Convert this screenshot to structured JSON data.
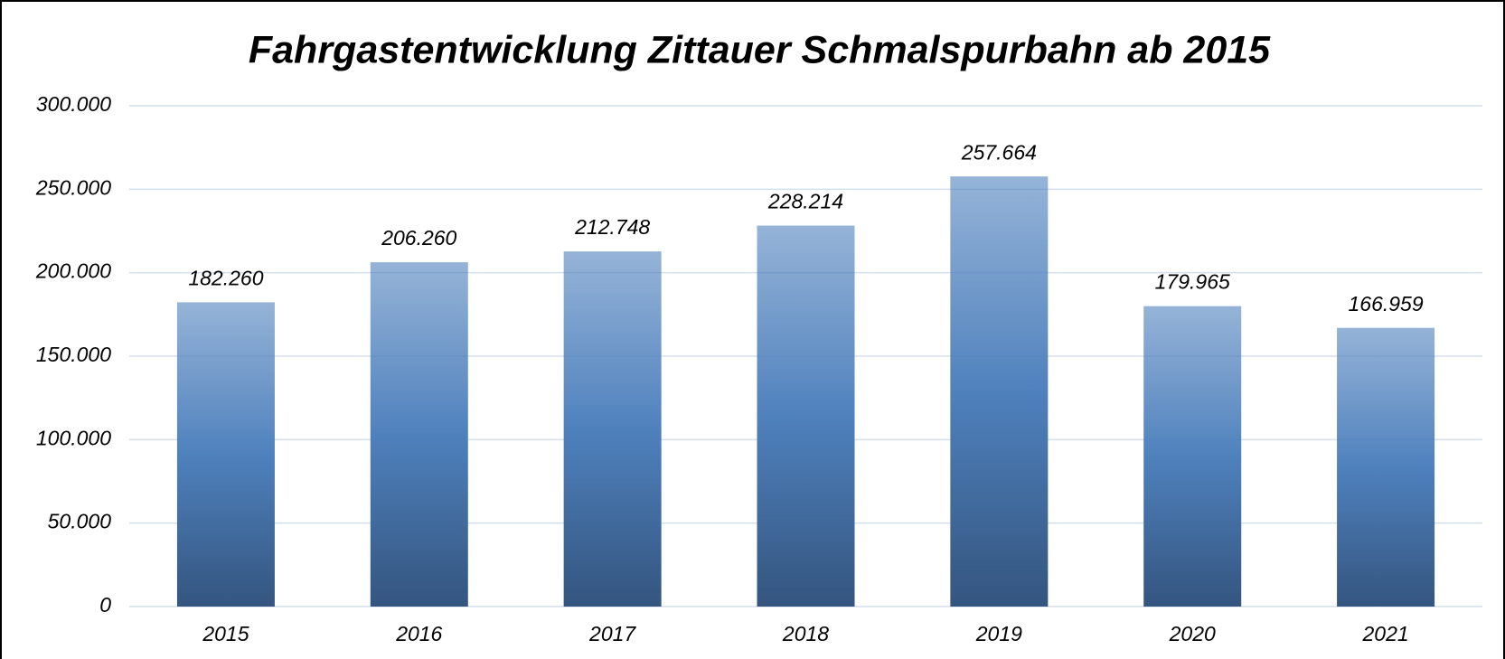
{
  "chart_data": {
    "type": "bar",
    "title": "Fahrgastentwicklung Zittauer Schmalspurbahn ab 2015",
    "categories": [
      "2015",
      "2016",
      "2017",
      "2018",
      "2019",
      "2020",
      "2021"
    ],
    "values": [
      182260,
      206260,
      212748,
      228214,
      257664,
      179965,
      166959
    ],
    "value_labels": [
      "182.260",
      "206.260",
      "212.748",
      "228.214",
      "257.664",
      "179.965",
      "166.959"
    ],
    "color": "#4f81bd",
    "ylim": [
      0,
      300000
    ],
    "yticks": [
      0,
      {
        "value": 50000,
        "label": "50.000"
      },
      {
        "value": 100000,
        "label": "100.000"
      },
      {
        "value": 150000,
        "label": "150.000"
      },
      {
        "value": 200000,
        "label": "200.000"
      },
      {
        "value": 250000,
        "label": "250.000"
      },
      {
        "value": 300000,
        "label": "300.000"
      }
    ],
    "grid": true
  }
}
